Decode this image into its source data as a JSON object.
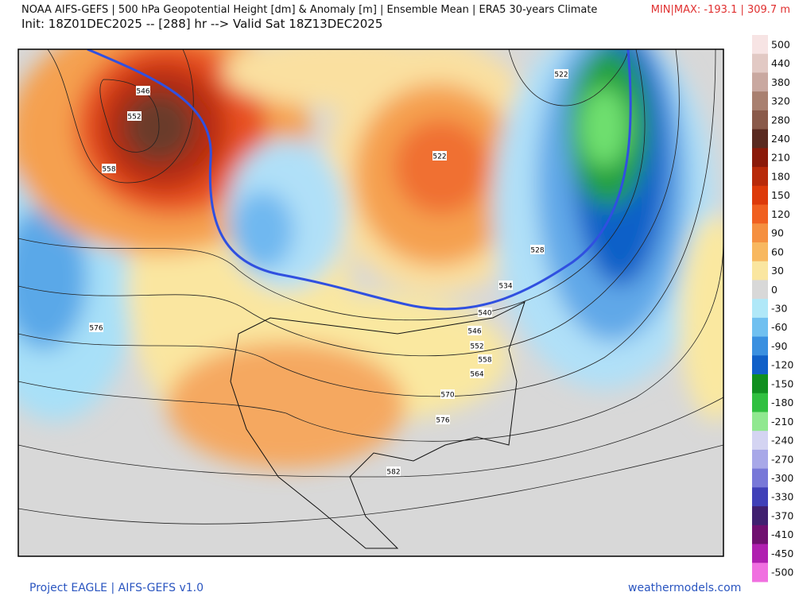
{
  "header": {
    "title": "NOAA AIFS-GEFS | 500 hPa Geopotential Height [dm] & Anomaly [m] | Ensemble Mean | ERA5 30-years Climate",
    "init": "Init: 18Z01DEC2025 -- [288] hr --> Valid Sat 18Z13DEC2025",
    "minmax": "MIN|MAX: -193.1 | 309.7 m"
  },
  "map": {
    "contour_labels": [
      546,
      552,
      558,
      576,
      522,
      522,
      528,
      534,
      540,
      546,
      552,
      558,
      564,
      570,
      576,
      582
    ]
  },
  "colorbar": {
    "labels": [
      500,
      440,
      380,
      320,
      280,
      240,
      210,
      180,
      150,
      120,
      90,
      60,
      30,
      0,
      -30,
      -60,
      -90,
      -120,
      -150,
      -180,
      -210,
      -240,
      -270,
      -300,
      -330,
      -370,
      -410,
      -450,
      -500
    ],
    "colors": [
      "#f7e4e4",
      "#e2c9c4",
      "#c9a8a0",
      "#a98070",
      "#8a5a4a",
      "#5a2a20",
      "#8b1a0a",
      "#b82a0a",
      "#dd3a0a",
      "#f06020",
      "#f59040",
      "#f8b860",
      "#fae6a0",
      "#d8d8d8",
      "#b0e8f8",
      "#70c0f0",
      "#3a90e0",
      "#1060c8",
      "#109020",
      "#30c040",
      "#90e890",
      "#d4d4f2",
      "#a8a8e8",
      "#7878d8",
      "#4040b8",
      "#402070",
      "#701070",
      "#b020b0",
      "#f070e0"
    ]
  },
  "footer": {
    "left": "Project EAGLE | AIFS-GEFS v1.0",
    "right": "weathermodels.com"
  }
}
